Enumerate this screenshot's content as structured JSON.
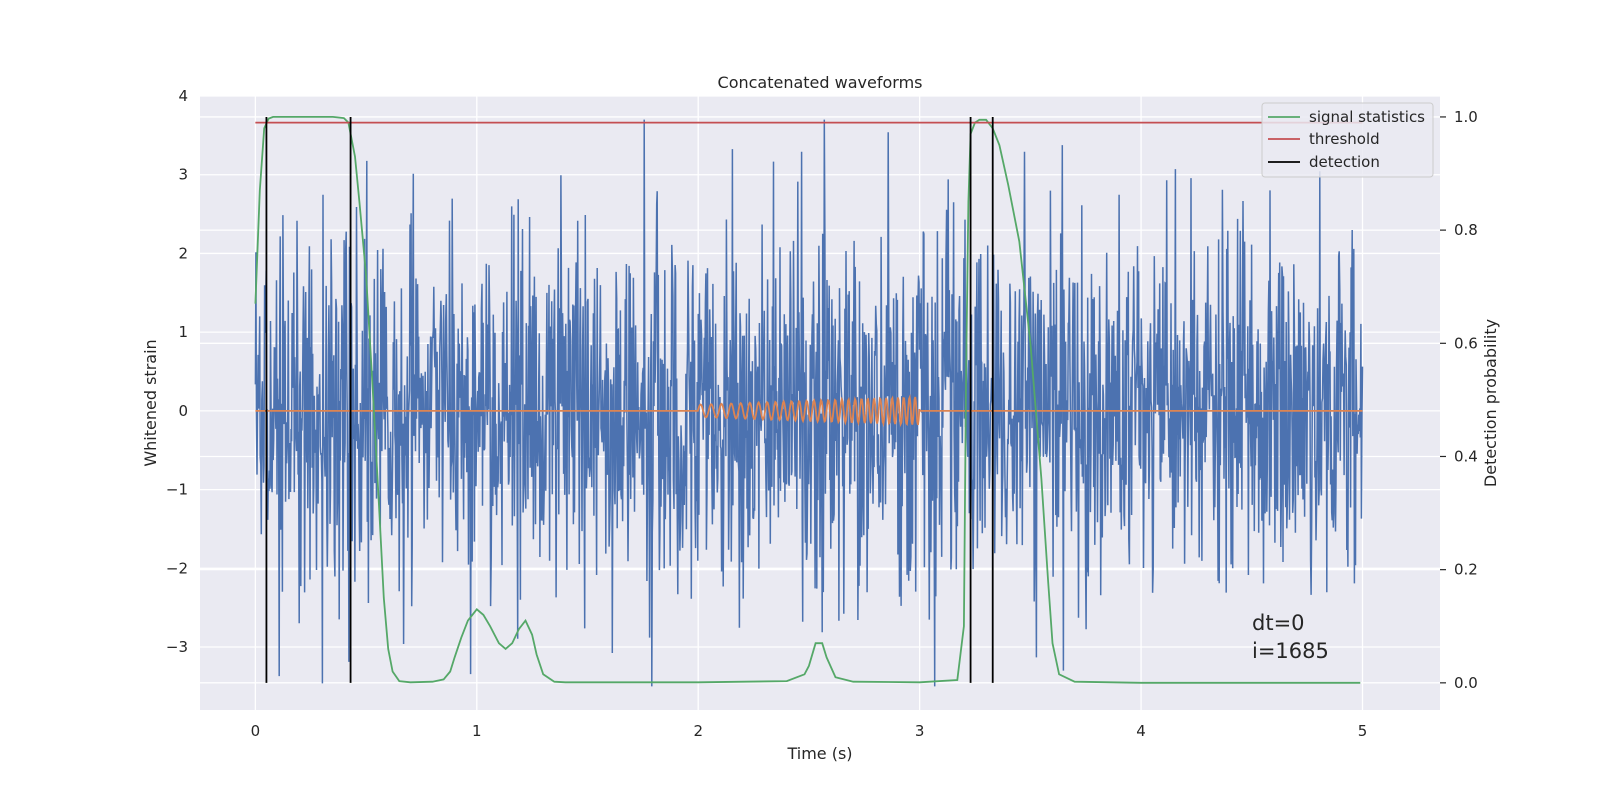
{
  "chart_data": {
    "type": "line",
    "title": "Concatenated waveforms",
    "xlabel": "Time (s)",
    "ylabel": "Whitened strain",
    "y2label": "Detection probability",
    "xlim": [
      -0.25,
      5.35
    ],
    "ylim": [
      -3.8,
      4.0
    ],
    "y2lim": [
      -0.048,
      1.037
    ],
    "xticks": [
      0,
      1,
      2,
      3,
      4,
      5
    ],
    "yticks": [
      -3,
      -2,
      -1,
      0,
      1,
      2,
      3,
      4
    ],
    "y2ticks": [
      0.0,
      0.2,
      0.4,
      0.6,
      0.8,
      1.0
    ],
    "xtick_labels": [
      "0",
      "1",
      "2",
      "3",
      "4",
      "5"
    ],
    "ytick_labels": [
      "−3",
      "−2",
      "−1",
      "0",
      "1",
      "2",
      "3",
      "4"
    ],
    "y2tick_labels": [
      "0.0",
      "0.2",
      "0.4",
      "0.6",
      "0.8",
      "1.0"
    ],
    "grid": true,
    "legend_position": "top-right",
    "colors": {
      "strain": "#4c72b0",
      "injection": "#dd8452",
      "signal_statistics": "#55a868",
      "threshold": "#c44e52",
      "detection": "#000000",
      "plot_background": "#eaeaf2",
      "grid": "#ffffff"
    },
    "noise": {
      "x_range": [
        0,
        5
      ],
      "samples": 2048,
      "typical_amplitude": 1.1,
      "peak_range": [
        -3.5,
        3.7
      ]
    },
    "injection": {
      "x_range": [
        2.0,
        3.0
      ],
      "amplitude_range": [
        0.08,
        0.18
      ],
      "frequency_start_hz": 20,
      "frequency_end_hz": 40
    },
    "series": [
      {
        "name": "signal statistics",
        "axis": "right",
        "x": [
          0,
          0.02,
          0.04,
          0.06,
          0.08,
          0.1,
          0.2,
          0.3,
          0.35,
          0.4,
          0.42,
          0.45,
          0.47,
          0.5,
          0.53,
          0.56,
          0.58,
          0.6,
          0.62,
          0.65,
          0.7,
          0.8,
          0.85,
          0.88,
          0.9,
          0.93,
          0.96,
          1.0,
          1.03,
          1.06,
          1.1,
          1.13,
          1.16,
          1.19,
          1.22,
          1.25,
          1.27,
          1.3,
          1.35,
          1.4,
          2.0,
          2.4,
          2.48,
          2.5,
          2.53,
          2.56,
          2.58,
          2.62,
          2.7,
          3.0,
          3.17,
          3.2,
          3.21,
          3.22,
          3.23,
          3.25,
          3.27,
          3.3,
          3.33,
          3.36,
          3.4,
          3.45,
          3.5,
          3.55,
          3.58,
          3.6,
          3.63,
          3.7,
          4.0,
          4.5,
          4.99
        ],
        "values": [
          0.67,
          0.87,
          0.98,
          0.997,
          1.0,
          1.0,
          1.0,
          1.0,
          1.0,
          0.998,
          0.99,
          0.93,
          0.85,
          0.72,
          0.52,
          0.3,
          0.15,
          0.06,
          0.02,
          0.003,
          0.001,
          0.002,
          0.006,
          0.02,
          0.045,
          0.08,
          0.11,
          0.13,
          0.12,
          0.1,
          0.07,
          0.06,
          0.07,
          0.095,
          0.11,
          0.085,
          0.05,
          0.015,
          0.002,
          0.001,
          0.001,
          0.003,
          0.015,
          0.03,
          0.07,
          0.07,
          0.045,
          0.01,
          0.002,
          0.001,
          0.005,
          0.1,
          0.55,
          0.85,
          0.97,
          0.99,
          0.995,
          0.995,
          0.98,
          0.95,
          0.88,
          0.78,
          0.6,
          0.36,
          0.18,
          0.07,
          0.015,
          0.002,
          0.0,
          0.0,
          0.0
        ]
      },
      {
        "name": "threshold",
        "axis": "right",
        "x": [
          0,
          5
        ],
        "values": [
          0.99,
          0.99
        ]
      },
      {
        "name": "detection",
        "axis": "right",
        "type": "vlines",
        "x": [
          0.05,
          0.43,
          3.23,
          3.33
        ],
        "y_range": [
          0,
          1
        ]
      }
    ],
    "annotations": [
      "dt=0",
      "i=1685"
    ]
  }
}
